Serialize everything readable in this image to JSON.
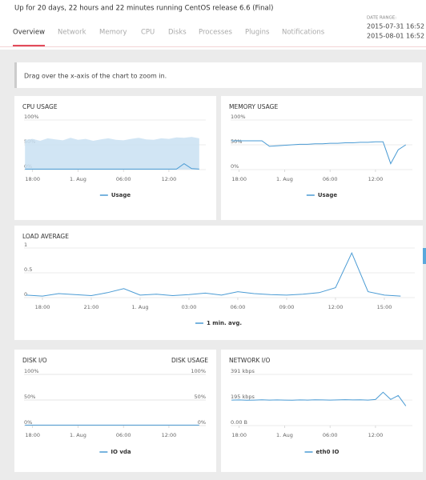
{
  "header": {
    "status": "Up for 20 days, 22 hours and 22 minutes running CentOS release 6.6 (Final)",
    "tabs": [
      "Overview",
      "Network",
      "Memory",
      "CPU",
      "Disks",
      "Processes",
      "Plugins",
      "Notifications"
    ],
    "date_range": {
      "label": "DATE RANGE:",
      "from": "2015-07-31 16:52",
      "to": "2015-08-01 16:52"
    }
  },
  "notice": "Drag over the x-axis of the chart to zoom in.",
  "chart_data": [
    {
      "type": "line",
      "title": "CPU USAGE",
      "x": [
        17,
        18,
        19,
        20,
        21,
        22,
        23,
        24,
        25,
        26,
        27,
        28,
        29,
        30,
        31,
        32,
        33,
        34,
        35,
        36,
        37,
        38,
        39,
        40
      ],
      "xlim": [
        16.87,
        40.87
      ],
      "xticks": [
        {
          "value": 18,
          "label": "18:00"
        },
        {
          "value": 24,
          "label": "1. Aug"
        },
        {
          "value": 30,
          "label": "06:00"
        },
        {
          "value": 36,
          "label": "12:00"
        }
      ],
      "ylim": [
        0,
        100
      ],
      "yticks": [
        {
          "value": 0,
          "label": "0%"
        },
        {
          "value": 50,
          "label": "50%"
        },
        {
          "value": 100,
          "label": "100%"
        }
      ],
      "series": [
        {
          "color": "#c9e1f2",
          "area": true,
          "values": [
            60,
            62,
            58,
            63,
            61,
            59,
            64,
            60,
            62,
            58,
            61,
            63,
            60,
            59,
            62,
            64,
            61,
            60,
            63,
            62,
            65,
            64,
            66,
            63
          ]
        },
        {
          "name": "Usage",
          "color": "#4a9bd4",
          "values": [
            1,
            1,
            1,
            1,
            1,
            1,
            1,
            1,
            1,
            1,
            1,
            1,
            1,
            1,
            1,
            1,
            1,
            1,
            1,
            1,
            1,
            12,
            2,
            1
          ]
        }
      ]
    },
    {
      "type": "line",
      "title": "MEMORY USAGE",
      "x": [
        17,
        18,
        19,
        20,
        21,
        22,
        23,
        24,
        25,
        26,
        27,
        28,
        29,
        30,
        31,
        32,
        33,
        34,
        35,
        36,
        37,
        38,
        39,
        40
      ],
      "xlim": [
        16.87,
        40.87
      ],
      "xticks": [
        {
          "value": 18,
          "label": "18:00"
        },
        {
          "value": 24,
          "label": "1. Aug"
        },
        {
          "value": 30,
          "label": "06:00"
        },
        {
          "value": 36,
          "label": "12:00"
        }
      ],
      "ylim": [
        0,
        100
      ],
      "yticks": [
        {
          "value": 0,
          "label": "0%"
        },
        {
          "value": 50,
          "label": "50%"
        },
        {
          "value": 100,
          "label": "100%"
        }
      ],
      "series": [
        {
          "name": "Usage",
          "color": "#4a9bd4",
          "values": [
            58,
            58,
            58,
            58,
            58,
            47,
            48,
            49,
            50,
            51,
            51,
            52,
            52,
            53,
            53,
            54,
            54,
            55,
            55,
            56,
            56,
            12,
            40,
            50
          ]
        }
      ]
    },
    {
      "type": "line",
      "title": "LOAD AVERAGE",
      "x": [
        17,
        18,
        19,
        20,
        21,
        22,
        23,
        24,
        25,
        26,
        27,
        28,
        29,
        30,
        31,
        32,
        33,
        34,
        35,
        36,
        37,
        38,
        39,
        40
      ],
      "xlim": [
        16.87,
        40.87
      ],
      "xticks": [
        {
          "value": 18,
          "label": "18:00"
        },
        {
          "value": 21,
          "label": "21:00"
        },
        {
          "value": 24,
          "label": "1. Aug"
        },
        {
          "value": 27,
          "label": "03:00"
        },
        {
          "value": 30,
          "label": "06:00"
        },
        {
          "value": 33,
          "label": "09:00"
        },
        {
          "value": 36,
          "label": "12:00"
        },
        {
          "value": 39,
          "label": "15:00"
        }
      ],
      "ylim": [
        0,
        1
      ],
      "yticks": [
        0,
        0.5,
        1
      ],
      "series": [
        {
          "name": "1 min. avg.",
          "color": "#4a9bd4",
          "values": [
            0.05,
            0.03,
            0.08,
            0.06,
            0.04,
            0.1,
            0.18,
            0.05,
            0.07,
            0.04,
            0.06,
            0.09,
            0.05,
            0.12,
            0.08,
            0.06,
            0.05,
            0.07,
            0.1,
            0.2,
            0.9,
            0.12,
            0.05,
            0.03
          ]
        }
      ]
    },
    {
      "type": "line",
      "title": "DISK I/O",
      "y2_title": "DISK USAGE",
      "x": [
        17,
        18,
        19,
        20,
        21,
        22,
        23,
        24,
        25,
        26,
        27,
        28,
        29,
        30,
        31,
        32,
        33,
        34,
        35,
        36,
        37,
        38,
        39,
        40
      ],
      "xlim": [
        16.87,
        40.87
      ],
      "xticks": [
        {
          "value": 18,
          "label": "18:00"
        },
        {
          "value": 24,
          "label": "1. Aug"
        },
        {
          "value": 30,
          "label": "06:00"
        },
        {
          "value": 36,
          "label": "12:00"
        }
      ],
      "ylim": [
        0,
        100
      ],
      "yticks": [
        {
          "value": 0,
          "label": "0%"
        },
        {
          "value": 50,
          "label": "50%"
        },
        {
          "value": 100,
          "label": "100%"
        }
      ],
      "y2lim": [
        0,
        100
      ],
      "y2ticks": [
        {
          "value": 0,
          "label": "0%"
        },
        {
          "value": 50,
          "label": "50%"
        },
        {
          "value": 100,
          "label": "100%"
        }
      ],
      "series": [
        {
          "name": "IO vda",
          "color": "#4a9bd4",
          "values": [
            1,
            1,
            1,
            1,
            1,
            1,
            1,
            1,
            1,
            1,
            1,
            1,
            1,
            1,
            1,
            1,
            1,
            1,
            1,
            1,
            1,
            1,
            1,
            1
          ]
        }
      ]
    },
    {
      "type": "line",
      "title": "NETWORK I/O",
      "x": [
        17,
        18,
        19,
        20,
        21,
        22,
        23,
        24,
        25,
        26,
        27,
        28,
        29,
        30,
        31,
        32,
        33,
        34,
        35,
        36,
        37,
        38,
        39,
        40
      ],
      "xlim": [
        16.87,
        40.87
      ],
      "xticks": [
        {
          "value": 18,
          "label": "18:00"
        },
        {
          "value": 24,
          "label": "1. Aug"
        },
        {
          "value": 30,
          "label": "06:00"
        },
        {
          "value": 36,
          "label": "12:00"
        }
      ],
      "ylim": [
        0,
        391
      ],
      "yticks": [
        {
          "value": 0,
          "label": "0.00 B"
        },
        {
          "value": 195,
          "label": "195 kbps"
        },
        {
          "value": 391,
          "label": "391 kbps"
        }
      ],
      "series": [
        {
          "name": "eth0 IO",
          "color": "#4a9bd4",
          "values": [
            195,
            196,
            194,
            195,
            197,
            195,
            196,
            195,
            194,
            196,
            195,
            197,
            196,
            195,
            196,
            198,
            196,
            197,
            195,
            199,
            255,
            200,
            230,
            150
          ]
        }
      ]
    }
  ]
}
